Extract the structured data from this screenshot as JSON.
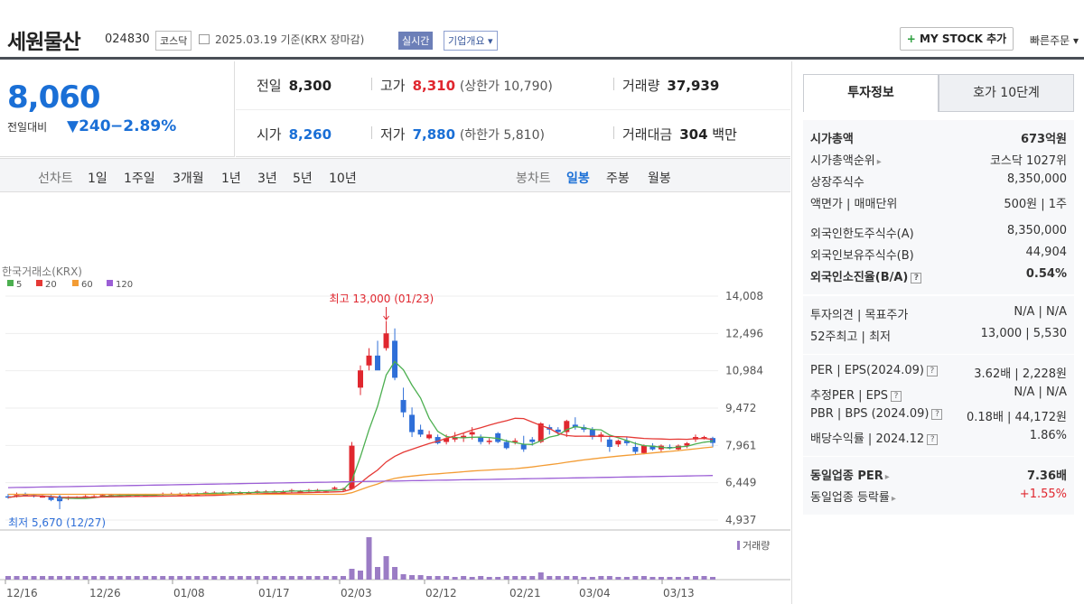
{
  "header": {
    "name": "세원물산",
    "code": "024830",
    "market": "코스닥",
    "date": "2025.03.19 기준(KRX 장마감)",
    "realtime": "실시간",
    "company_overview": "기업개요",
    "mystock": "MY STOCK 추가",
    "quick_order": "빠른주문"
  },
  "quote": {
    "price": "8,060",
    "change_label": "전일대비",
    "change": "▼240",
    "change_pct": "−2.89%"
  },
  "stats": {
    "prev_label": "전일",
    "prev": "8,300",
    "high_label": "고가",
    "high": "8,310",
    "upper_limit": "(상한가 10,790)",
    "volume_label": "거래량",
    "volume": "37,939",
    "open_label": "시가",
    "open": "8,260",
    "low_label": "저가",
    "low": "7,880",
    "lower_limit": "(하한가 5,810)",
    "value_label": "거래대금",
    "value": "304",
    "value_unit": "백만"
  },
  "period_tabs": {
    "label": "선차트",
    "items": [
      "1일",
      "1주일",
      "3개월",
      "1년",
      "3년",
      "5년",
      "10년"
    ]
  },
  "candle_tabs": {
    "label": "봉차트",
    "items": [
      "일봉",
      "주봉",
      "월봉"
    ],
    "selected": "일봉"
  },
  "chart_data": {
    "type": "candlestick",
    "source": "한국거래소(KRX)",
    "ma_legend": [
      {
        "name": "5",
        "color": "#4caf50"
      },
      {
        "name": "20",
        "color": "#e53935"
      },
      {
        "name": "60",
        "color": "#f39c34"
      },
      {
        "name": "120",
        "color": "#9c5fd6"
      }
    ],
    "y_ticks": [
      "14,008",
      "12,496",
      "10,984",
      "9,472",
      "7,961",
      "6,449",
      "4,937"
    ],
    "x_ticks": [
      "12/16",
      "12/26",
      "01/08",
      "01/17",
      "02/03",
      "02/12",
      "02/21",
      "03/04",
      "03/13"
    ],
    "high_annotation": "최고 13,000 (01/23)",
    "low_annotation": "최저 5,670 (12/27)",
    "volume_label": "거래량",
    "up_color": "#e0272f",
    "down_color": "#2f6fd8"
  },
  "invest": {
    "tab_a": "투자정보",
    "tab_b": "호가 10단계",
    "g1": [
      {
        "k": "시가총액",
        "v": "673억원",
        "bold": true
      },
      {
        "k": "시가총액순위",
        "v": "코스닥 1027위",
        "arrow": true
      },
      {
        "k": "상장주식수",
        "v": "8,350,000"
      },
      {
        "k": "액면가 | 매매단위",
        "v": "500원 | 1주"
      }
    ],
    "g2": [
      {
        "k": "외국인한도주식수(A)",
        "v": "8,350,000"
      },
      {
        "k": "외국인보유주식수(B)",
        "v": "44,904"
      },
      {
        "k": "외국인소진율(B/A)",
        "v": "0.54%",
        "bold": true,
        "q": true
      }
    ],
    "g3": [
      {
        "k": "투자의견 | 목표주가",
        "v": "N/A | N/A"
      },
      {
        "k": "52주최고 | 최저",
        "v": "13,000 | 5,530"
      }
    ],
    "g4": [
      {
        "k": "PER | EPS(2024.09)",
        "v": "3.62배 | 2,228원",
        "q": true
      },
      {
        "k": "추정PER | EPS",
        "v": "N/A | N/A",
        "q": true
      },
      {
        "k": "PBR | BPS (2024.09)",
        "v": "0.18배 | 44,172원",
        "q": true
      },
      {
        "k": "배당수익률 | 2024.12",
        "v": "1.86%",
        "q": true
      }
    ],
    "g5": [
      {
        "k": "동일업종 PER",
        "v": "7.36배",
        "bold": true,
        "arrow": true
      },
      {
        "k": "동일업종 등락률",
        "v": "+1.55%",
        "up": true,
        "arrow": true
      }
    ]
  }
}
